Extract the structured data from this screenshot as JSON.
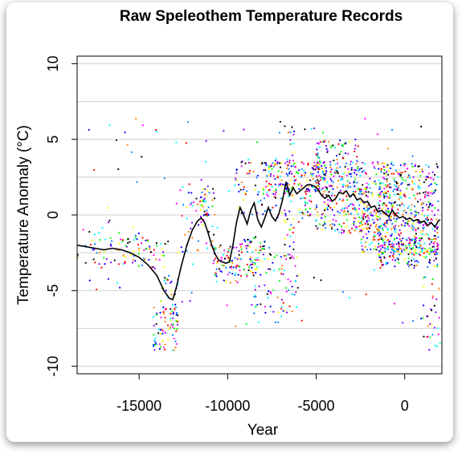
{
  "chart_data": {
    "type": "scatter",
    "title": "Raw Speleothem Temperature Records",
    "xlabel": "Year",
    "ylabel": "Temperature Anomaly (°C)",
    "xlim": [
      -18500,
      2100
    ],
    "ylim": [
      -10.5,
      10.5
    ],
    "x_ticks": [
      -15000,
      -10000,
      -5000,
      0
    ],
    "x_tick_labels": [
      "-15000",
      "-10000",
      "-5000",
      "0"
    ],
    "y_ticks": [
      -10,
      -5,
      0,
      5,
      10
    ],
    "y_tick_labels": [
      "-10",
      "-5",
      "0",
      "5",
      "10"
    ],
    "grid": "horizontal",
    "grid_y": [
      -7.5,
      -2.5,
      2.5,
      7.5
    ],
    "legend": "none",
    "point_colors": [
      "#ff00ff",
      "#0000ff",
      "#00ffff",
      "#00ff00",
      "#ffff00",
      "#ff8000",
      "#ff0000",
      "#000000",
      "#8000ff",
      "#0080ff"
    ],
    "series": [
      {
        "type": "line",
        "color": "#000000",
        "x": [
          -18500,
          -18000,
          -17500,
          -17000,
          -16500,
          -16000,
          -15500,
          -15000,
          -14500,
          -14000,
          -13600,
          -13300,
          -13100,
          -12900,
          -12600,
          -12300,
          -12000,
          -11700,
          -11500,
          -11300,
          -11100,
          -10900,
          -10700,
          -10500,
          -10300,
          -10100,
          -9900,
          -9700,
          -9500,
          -9300,
          -9100,
          -8900,
          -8700,
          -8500,
          -8300,
          -8100,
          -7900,
          -7700,
          -7500,
          -7300,
          -7100,
          -6900,
          -6700,
          -6500,
          -6300,
          -6100,
          -5900,
          -5700,
          -5500,
          -5300,
          -5100,
          -4900,
          -4700,
          -4500,
          -4300,
          -4100,
          -3900,
          -3700,
          -3500,
          -3300,
          -3100,
          -2900,
          -2700,
          -2500,
          -2300,
          -2100,
          -1900,
          -1700,
          -1500,
          -1300,
          -1100,
          -900,
          -700,
          -500,
          -300,
          -100,
          100,
          300,
          500,
          700,
          900,
          1100,
          1300,
          1500,
          1700,
          1900,
          2000
        ],
        "y": [
          -2.0,
          -2.1,
          -2.2,
          -2.3,
          -2.2,
          -2.3,
          -2.5,
          -2.8,
          -3.3,
          -4.0,
          -5.0,
          -5.5,
          -5.6,
          -4.8,
          -3.3,
          -2.0,
          -1.0,
          -0.4,
          -0.2,
          -0.5,
          -1.2,
          -2.0,
          -2.6,
          -3.0,
          -3.1,
          -3.2,
          -3.1,
          -2.0,
          -0.5,
          0.5,
          0.0,
          -0.6,
          0.3,
          0.8,
          -0.3,
          -0.8,
          -0.2,
          0.5,
          -0.1,
          -0.4,
          0.1,
          1.0,
          2.2,
          1.3,
          1.8,
          1.4,
          1.6,
          1.8,
          2.0,
          2.0,
          1.9,
          1.7,
          1.3,
          1.1,
          1.3,
          0.9,
          1.1,
          1.5,
          1.4,
          1.6,
          1.2,
          1.4,
          1.0,
          1.1,
          0.8,
          0.9,
          0.5,
          0.6,
          0.2,
          0.3,
          0.1,
          -0.1,
          0.3,
          0.0,
          -0.2,
          -0.1,
          -0.3,
          -0.2,
          -0.4,
          -0.3,
          -0.5,
          -0.4,
          -0.7,
          -0.5,
          -0.8,
          -0.4,
          -0.3
        ]
      }
    ],
    "scatter_clusters": [
      {
        "x": [
          -18500,
          -14500
        ],
        "y": [
          -3.5,
          -0.8
        ],
        "n": 60
      },
      {
        "x": [
          -16500,
          -13500
        ],
        "y": [
          -3.5,
          -1.5
        ],
        "n": 40
      },
      {
        "x": [
          -14200,
          -12800
        ],
        "y": [
          -9.0,
          -6.0
        ],
        "n": 70
      },
      {
        "x": [
          -13800,
          -12800
        ],
        "y": [
          -6.5,
          -4.0
        ],
        "n": 30
      },
      {
        "x": [
          -12800,
          -10600
        ],
        "y": [
          -2.5,
          2.2
        ],
        "n": 60
      },
      {
        "x": [
          -11500,
          -11000
        ],
        "y": [
          -0.5,
          2.0
        ],
        "n": 25
      },
      {
        "x": [
          -10800,
          -9200
        ],
        "y": [
          -4.5,
          -2.0
        ],
        "n": 70
      },
      {
        "x": [
          -9600,
          -6800
        ],
        "y": [
          0.0,
          3.8
        ],
        "n": 80
      },
      {
        "x": [
          -9400,
          -7600
        ],
        "y": [
          -4.0,
          -1.5
        ],
        "n": 60
      },
      {
        "x": [
          -8800,
          -6000
        ],
        "y": [
          -6.5,
          -2.5
        ],
        "n": 80
      },
      {
        "x": [
          -6800,
          -6200
        ],
        "y": [
          -3.0,
          6.0
        ],
        "n": 60
      },
      {
        "x": [
          -8000,
          -4000
        ],
        "y": [
          1.5,
          3.5
        ],
        "n": 160
      },
      {
        "x": [
          -6000,
          -2000
        ],
        "y": [
          -1.2,
          2.0
        ],
        "n": 200
      },
      {
        "x": [
          -5000,
          -2500
        ],
        "y": [
          2.0,
          5.0
        ],
        "n": 120
      },
      {
        "x": [
          -3000,
          -200
        ],
        "y": [
          -1.0,
          3.5
        ],
        "n": 140
      },
      {
        "x": [
          -2500,
          1900
        ],
        "y": [
          -2.5,
          0.5
        ],
        "n": 280
      },
      {
        "x": [
          -1500,
          1900
        ],
        "y": [
          0.5,
          3.5
        ],
        "n": 180
      },
      {
        "x": [
          -1500,
          1900
        ],
        "y": [
          -3.5,
          -1.5
        ],
        "n": 160
      },
      {
        "x": [
          1000,
          2000
        ],
        "y": [
          -9.0,
          -4.0
        ],
        "n": 30
      },
      {
        "x": [
          -18000,
          2000
        ],
        "y": [
          -7.5,
          6.5
        ],
        "n": 120
      }
    ]
  }
}
